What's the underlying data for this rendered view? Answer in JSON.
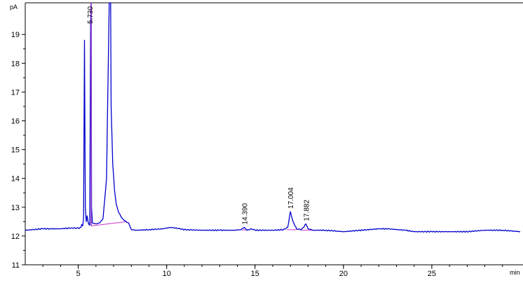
{
  "chart_data": {
    "type": "line",
    "y_unit": "pA",
    "x_unit": "min",
    "xlim": [
      2,
      30
    ],
    "ylim": [
      11,
      20.1
    ],
    "x_ticks": [
      5,
      10,
      15,
      20,
      25
    ],
    "y_ticks": [
      11,
      12,
      13,
      14,
      15,
      16,
      17,
      18,
      19
    ],
    "grid": false,
    "series": [
      {
        "color": "#0000cc",
        "x": [
          2.0,
          3.0,
          4.0,
          4.6,
          5.0,
          5.15,
          5.2,
          5.25,
          5.3,
          5.35,
          5.4,
          5.45,
          5.5,
          5.55,
          5.6,
          5.65,
          5.7,
          5.73,
          5.75,
          5.8,
          6.0,
          6.2,
          6.4,
          6.6,
          6.75,
          6.8,
          6.83,
          6.86,
          6.95,
          7.05,
          7.15,
          7.3,
          7.5,
          7.7,
          7.85,
          8.0,
          8.3,
          9.0,
          9.8,
          10.2,
          10.5,
          11.0,
          12.0,
          13.0,
          13.8,
          14.2,
          14.39,
          14.55,
          14.8,
          15.0,
          16.0,
          16.6,
          16.85,
          17.0,
          17.15,
          17.35,
          17.6,
          17.75,
          17.88,
          18.0,
          18.3,
          19.0,
          20.0,
          21.0,
          22.0,
          22.5,
          23.5,
          24.0,
          25.0,
          26.0,
          27.0,
          28.0,
          29.0,
          30.0
        ],
        "y": [
          12.2,
          12.25,
          12.25,
          12.28,
          12.27,
          12.3,
          12.4,
          12.35,
          12.6,
          18.8,
          13.0,
          12.5,
          12.7,
          12.5,
          12.4,
          12.38,
          19.5,
          20.1,
          13.0,
          12.45,
          12.42,
          12.45,
          12.6,
          14.0,
          20.1,
          20.1,
          20.1,
          16.5,
          14.5,
          13.6,
          13.1,
          12.8,
          12.6,
          12.5,
          12.45,
          12.22,
          12.2,
          12.22,
          12.25,
          12.3,
          12.28,
          12.22,
          12.2,
          12.2,
          12.2,
          12.22,
          12.3,
          12.2,
          12.25,
          12.2,
          12.2,
          12.22,
          12.3,
          12.85,
          12.5,
          12.25,
          12.22,
          12.3,
          12.42,
          12.25,
          12.2,
          12.2,
          12.15,
          12.2,
          12.25,
          12.25,
          12.2,
          12.15,
          12.15,
          12.15,
          12.15,
          12.2,
          12.2,
          12.15
        ]
      }
    ],
    "baselines": {
      "color": "#cc33cc",
      "segments": [
        {
          "x": [
            5.73,
            7.75
          ],
          "y": [
            12.35,
            12.5
          ]
        },
        {
          "x": [
            14.25,
            14.55
          ],
          "y": [
            12.21,
            12.21
          ]
        },
        {
          "x": [
            16.8,
            17.35
          ],
          "y": [
            12.22,
            12.22
          ]
        },
        {
          "x": [
            17.6,
            18.2
          ],
          "y": [
            12.2,
            12.2
          ]
        }
      ]
    },
    "peak_labels": [
      {
        "label": "5.730",
        "x": 5.73,
        "y": 20.1
      },
      {
        "label": "14.390",
        "x": 14.39,
        "y": 12.3
      },
      {
        "label": "17.004",
        "x": 17.0,
        "y": 12.85
      },
      {
        "label": "17.882",
        "x": 17.88,
        "y": 12.42
      }
    ]
  }
}
